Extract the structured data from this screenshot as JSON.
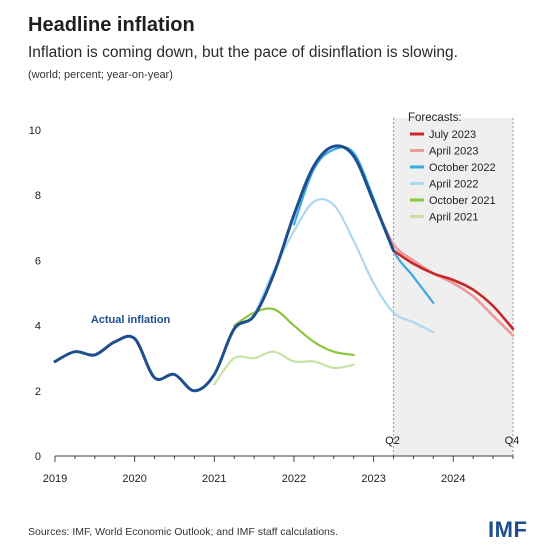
{
  "header": {
    "title": "Headline inflation",
    "subtitle": "Inflation is coming down, but the pace of disinflation is slowing.",
    "units": "(world; percent; year-on-year)"
  },
  "footer": {
    "source": "Sources: IMF, World Economic Outlook; and IMF staff calculations.",
    "logo": "IMF"
  },
  "chart_data": {
    "type": "line",
    "title": "Headline inflation",
    "subtitle": "Inflation is coming down, but the pace of disinflation is slowing.",
    "ylabel": "(world; percent; year-on-year)",
    "xlim": [
      2019.0,
      2024.75
    ],
    "ylim": [
      0,
      10
    ],
    "x_ticks": [
      2019,
      2020,
      2021,
      2022,
      2023,
      2024
    ],
    "x_tick_labels": [
      "2019",
      "2020",
      "2021",
      "2022",
      "2023",
      "2024"
    ],
    "y_ticks": [
      0,
      2,
      4,
      6,
      8,
      10
    ],
    "y_tick_labels": [
      "0",
      "2",
      "4",
      "6",
      "8",
      "10"
    ],
    "grid": false,
    "forecast_region": {
      "start": 2023.25,
      "end": 2024.75,
      "color": "#efefef"
    },
    "quarter_markers": [
      {
        "x": 2023.25,
        "label": "Q2"
      },
      {
        "x": 2024.75,
        "label": "Q4"
      }
    ],
    "legend": {
      "title": "Forecasts:",
      "placement": "top-right"
    },
    "annotations": [
      {
        "text": "Actual inflation",
        "x": 2019.45,
        "y": 4.2,
        "color": "#1d4f8f"
      }
    ],
    "series": [
      {
        "name": "Actual inflation",
        "in_legend": false,
        "color": "#1d4f8f",
        "width": 3,
        "x": [
          2019.0,
          2019.25,
          2019.5,
          2019.75,
          2020.0,
          2020.25,
          2020.5,
          2020.75,
          2021.0,
          2021.25,
          2021.5,
          2021.75,
          2022.0,
          2022.25,
          2022.5,
          2022.75,
          2023.0,
          2023.25
        ],
        "y": [
          2.9,
          3.2,
          3.1,
          3.5,
          3.6,
          2.4,
          2.5,
          2.0,
          2.5,
          3.9,
          4.3,
          5.6,
          7.4,
          8.9,
          9.5,
          9.2,
          7.8,
          6.3
        ]
      },
      {
        "name": "July 2023",
        "in_legend": true,
        "color": "#c62828",
        "width": 2.6,
        "x": [
          2023.25,
          2023.5,
          2023.75,
          2024.0,
          2024.25,
          2024.5,
          2024.75
        ],
        "y": [
          6.3,
          5.9,
          5.6,
          5.4,
          5.1,
          4.6,
          3.9
        ]
      },
      {
        "name": "April 2023",
        "in_legend": true,
        "color": "#ef9a9a",
        "width": 2.6,
        "x": [
          2023.0,
          2023.25,
          2023.5,
          2023.75,
          2024.0,
          2024.25,
          2024.5,
          2024.75
        ],
        "y": [
          7.8,
          6.5,
          6.0,
          5.6,
          5.3,
          4.9,
          4.3,
          3.7
        ]
      },
      {
        "name": "October 2022",
        "in_legend": true,
        "color": "#3fa9dc",
        "width": 2.2,
        "x": [
          2022.0,
          2022.25,
          2022.5,
          2022.75,
          2023.0,
          2023.25,
          2023.5,
          2023.75
        ],
        "y": [
          7.1,
          8.8,
          9.4,
          9.3,
          7.9,
          6.3,
          5.5,
          4.7
        ]
      },
      {
        "name": "April 2022",
        "in_legend": true,
        "color": "#aed8f0",
        "width": 2.2,
        "x": [
          2021.5,
          2021.75,
          2022.0,
          2022.25,
          2022.5,
          2022.75,
          2023.0,
          2023.25,
          2023.5,
          2023.75
        ],
        "y": [
          4.3,
          5.7,
          6.9,
          7.8,
          7.7,
          6.6,
          5.3,
          4.4,
          4.1,
          3.8
        ]
      },
      {
        "name": "October 2021",
        "in_legend": true,
        "color": "#8dc63f",
        "width": 2.2,
        "x": [
          2021.25,
          2021.5,
          2021.75,
          2022.0,
          2022.25,
          2022.5,
          2022.75
        ],
        "y": [
          4.0,
          4.4,
          4.5,
          4.0,
          3.5,
          3.2,
          3.1
        ]
      },
      {
        "name": "April 2021",
        "in_legend": true,
        "color": "#c7e2a4",
        "width": 2.2,
        "x": [
          2021.0,
          2021.25,
          2021.5,
          2021.75,
          2022.0,
          2022.25,
          2022.5,
          2022.75
        ],
        "y": [
          2.2,
          3.0,
          3.0,
          3.2,
          2.9,
          2.9,
          2.7,
          2.8
        ]
      }
    ]
  }
}
